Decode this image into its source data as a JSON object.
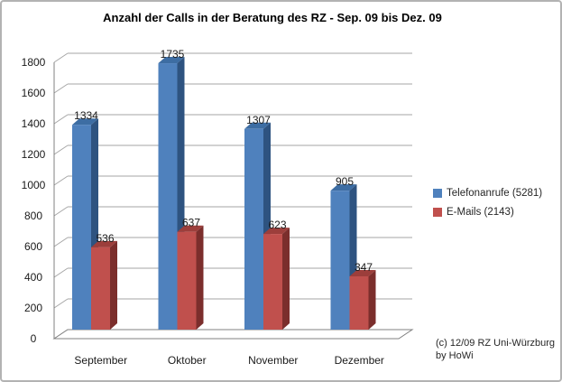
{
  "title": "Anzahl der Calls in der Beratung des RZ - Sep. 09 bis Dez. 09",
  "footer": {
    "line1": "(c) 12/09 RZ  Uni-Würzburg",
    "line2": "by HoWi"
  },
  "chart_data": {
    "type": "bar",
    "style": "3d-clustered-column",
    "title": "Anzahl der Calls in der Beratung des RZ - Sep. 09 bis Dez. 09",
    "categories": [
      "September",
      "Oktober",
      "November",
      "Dezember"
    ],
    "series": [
      {
        "name": "Telefonanrufe (5281)",
        "values": [
          1334,
          1735,
          1307,
          905
        ],
        "color": "#4F81BD",
        "color_top": "#3D6DA3",
        "color_side": "#2E5380"
      },
      {
        "name": "E-Mails (2143)",
        "values": [
          536,
          637,
          623,
          347
        ],
        "color": "#C0504D",
        "color_top": "#9C3E3B",
        "color_side": "#7B2E2C"
      }
    ],
    "xlabel": "",
    "ylabel": "",
    "ylim": [
      0,
      1800
    ],
    "ytick_step": 200,
    "grid": true,
    "data_labels": true,
    "legend_position": "right",
    "gridline_color": "#A6A6A6",
    "axis_color": "#808080"
  }
}
